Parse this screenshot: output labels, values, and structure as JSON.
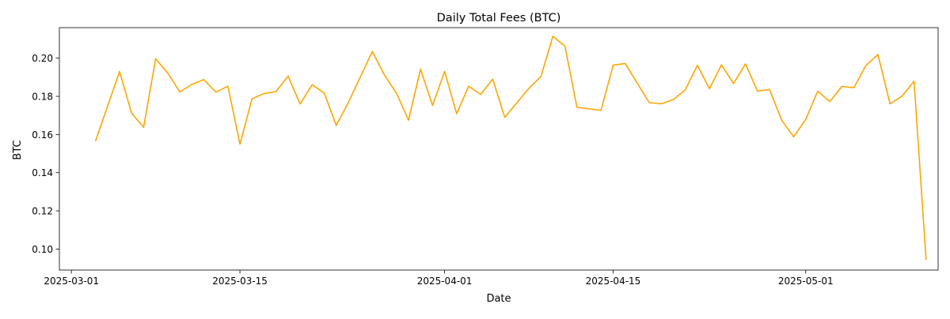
{
  "chart_data": {
    "type": "line",
    "title": "Daily Total Fees (BTC)",
    "xlabel": "Date",
    "ylabel": "BTC",
    "x_ticks": [
      "2025-03-01",
      "2025-03-15",
      "2025-04-01",
      "2025-04-15",
      "2025-05-01"
    ],
    "y_ticks": [
      "0.10",
      "0.12",
      "0.14",
      "0.16",
      "0.18",
      "0.20"
    ],
    "xlim": [
      "2025-02-28",
      "2025-05-12"
    ],
    "ylim": [
      0.089,
      0.216
    ],
    "grid": false,
    "line_color": "#FFA500",
    "series": [
      {
        "x": [
          "2025-03-03",
          "2025-03-05",
          "2025-03-06",
          "2025-03-07",
          "2025-03-08",
          "2025-03-09",
          "2025-03-10",
          "2025-03-11",
          "2025-03-12",
          "2025-03-13",
          "2025-03-14",
          "2025-03-15",
          "2025-03-16",
          "2025-03-17",
          "2025-03-18",
          "2025-03-19",
          "2025-03-20",
          "2025-03-21",
          "2025-03-22",
          "2025-03-23",
          "2025-03-24",
          "2025-03-26",
          "2025-03-27",
          "2025-03-28",
          "2025-03-29",
          "2025-03-30",
          "2025-03-31",
          "2025-04-01",
          "2025-04-02",
          "2025-04-03",
          "2025-04-04",
          "2025-04-05",
          "2025-04-06",
          "2025-04-08",
          "2025-04-09",
          "2025-04-10",
          "2025-04-11",
          "2025-04-12",
          "2025-04-14",
          "2025-04-15",
          "2025-04-16",
          "2025-04-18",
          "2025-04-19",
          "2025-04-20",
          "2025-04-21",
          "2025-04-22",
          "2025-04-23",
          "2025-04-24",
          "2025-04-25",
          "2025-04-26",
          "2025-04-27",
          "2025-04-28",
          "2025-04-29",
          "2025-04-30",
          "2025-05-01",
          "2025-05-02",
          "2025-05-03",
          "2025-05-04",
          "2025-05-05",
          "2025-05-06",
          "2025-05-07",
          "2025-05-08",
          "2025-05-09",
          "2025-05-10",
          "2025-05-11"
        ],
        "y": [
          0.1565,
          0.193,
          0.1713,
          0.1638,
          0.1997,
          0.1923,
          0.1823,
          0.1862,
          0.1888,
          0.1822,
          0.1853,
          0.155,
          0.1787,
          0.1815,
          0.1825,
          0.1906,
          0.176,
          0.1861,
          0.1818,
          0.1648,
          0.1767,
          0.2035,
          0.1912,
          0.1817,
          0.1675,
          0.1942,
          0.1752,
          0.1931,
          0.1709,
          0.1853,
          0.181,
          0.189,
          0.169,
          0.1842,
          0.1903,
          0.2115,
          0.2063,
          0.1742,
          0.1727,
          0.1964,
          0.1972,
          0.1767,
          0.1761,
          0.1783,
          0.1835,
          0.1963,
          0.184,
          0.1965,
          0.1867,
          0.197,
          0.1827,
          0.1836,
          0.1675,
          0.1588,
          0.1679,
          0.1827,
          0.1773,
          0.1852,
          0.1845,
          0.1962,
          0.2019,
          0.1761,
          0.1801,
          0.1879,
          0.0943
        ]
      }
    ]
  }
}
